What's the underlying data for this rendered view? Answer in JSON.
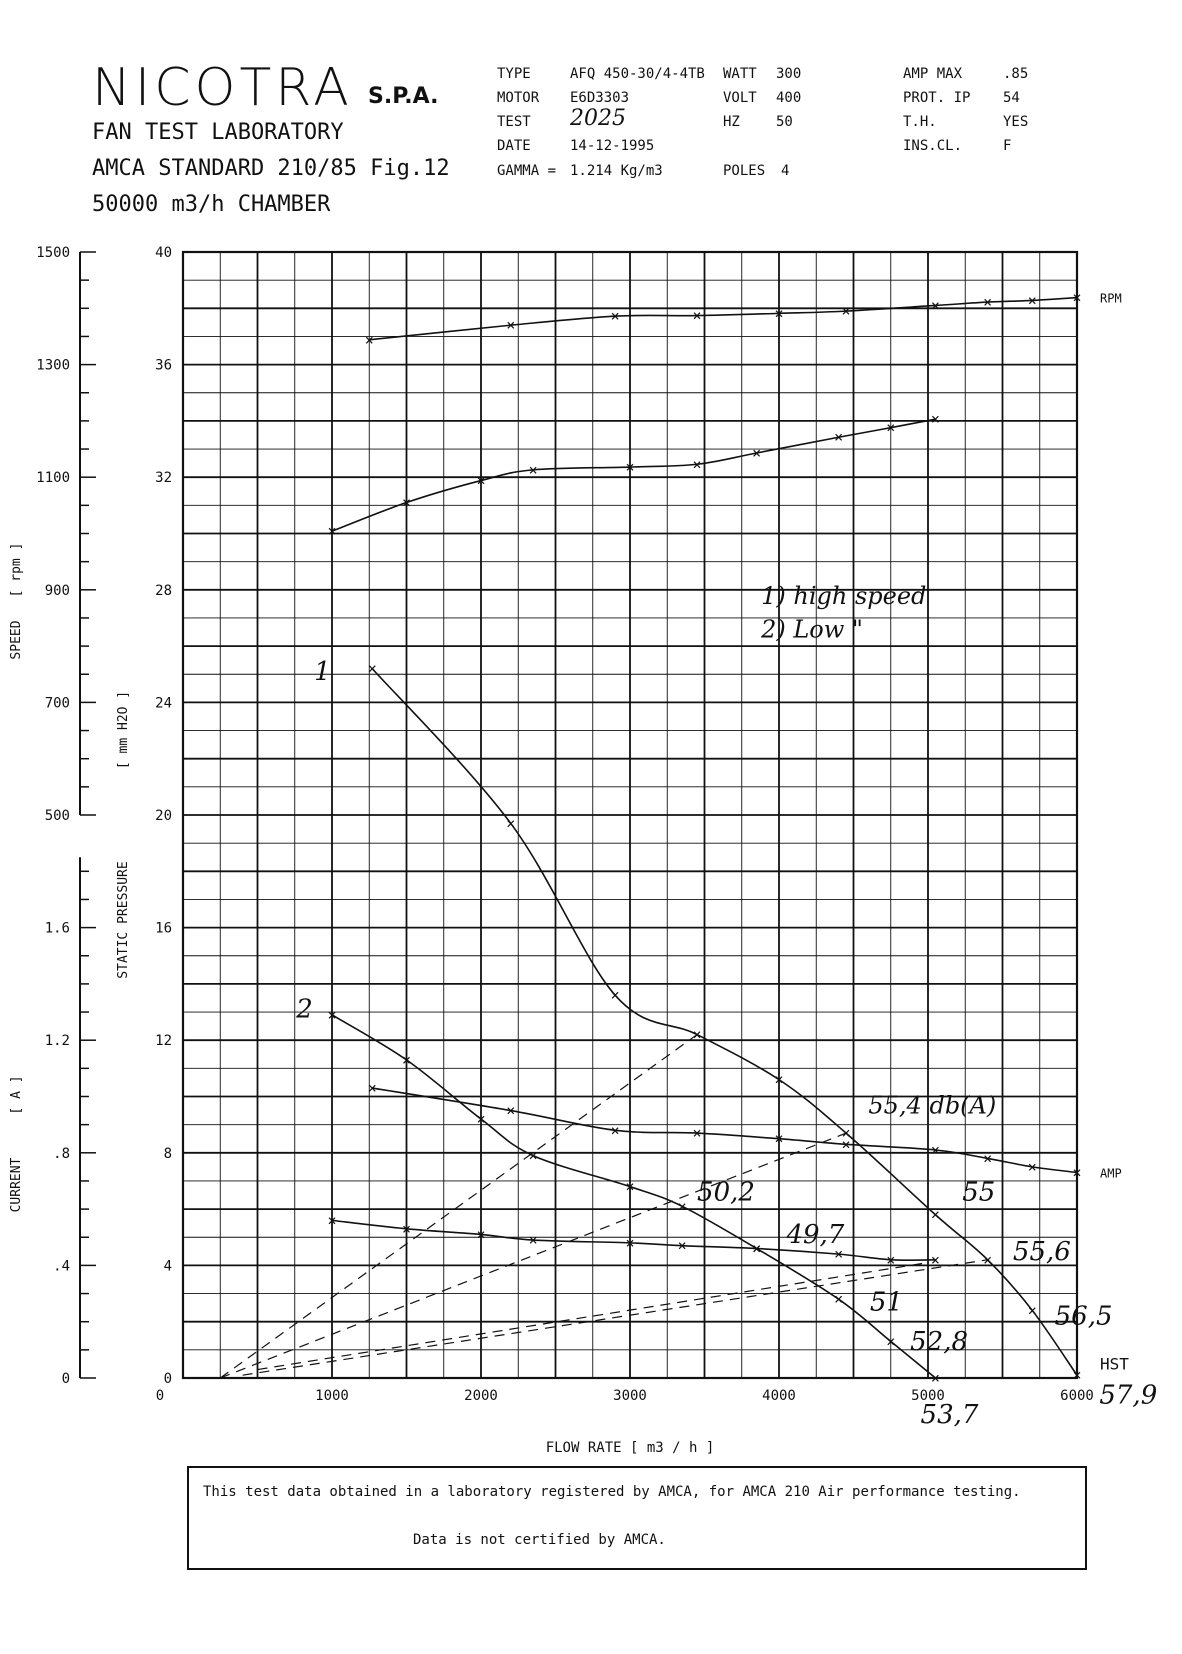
{
  "header": {
    "brand": "NICOTRA",
    "suffix": "S.P.A.",
    "lines": [
      "FAN TEST LABORATORY",
      "AMCA STANDARD 210/85  Fig.12",
      "50000 m3/h  CHAMBER"
    ]
  },
  "specs": {
    "col1": [
      {
        "label": "TYPE",
        "value": "AFQ 450-30/4-4TB"
      },
      {
        "label": "MOTOR",
        "value": "E6D3303"
      },
      {
        "label": "TEST",
        "value": "2025"
      },
      {
        "label": "DATE",
        "value": "14-12-1995"
      },
      {
        "label": "GAMMA =",
        "value": "1.214 Kg/m3"
      }
    ],
    "col2": [
      {
        "label": "WATT",
        "value": "300"
      },
      {
        "label": "VOLT",
        "value": "400"
      },
      {
        "label": "HZ",
        "value": "50"
      },
      {
        "label": "POLES",
        "value": "4"
      }
    ],
    "col3": [
      {
        "label": "AMP MAX",
        "value": ".85"
      },
      {
        "label": "PROT.  IP",
        "value": "54"
      },
      {
        "label": "T.H.",
        "value": "YES"
      },
      {
        "label": "INS.CL.",
        "value": "F"
      }
    ]
  },
  "chart_data": {
    "type": "line",
    "xlabel": "FLOW RATE [ m3 / h ]",
    "xlim": [
      0,
      6000
    ],
    "x_ticks": [
      0,
      1000,
      2000,
      3000,
      4000,
      5000,
      6000
    ],
    "grid": true,
    "axes": {
      "pressure": {
        "label": "STATIC PRESSURE",
        "unit": "[ mm H2O ]",
        "lim": [
          0,
          40
        ],
        "ticks": [
          "0",
          "4",
          "8",
          "12",
          "16",
          "20",
          "24",
          "28",
          "32",
          "36",
          "40"
        ]
      },
      "speed": {
        "label": "SPEED",
        "unit": "[ rpm ]",
        "lim": [
          500,
          1500
        ],
        "ticks": [
          "500",
          "700",
          "900",
          "1100",
          "1300",
          "1500"
        ]
      },
      "current": {
        "label": "CURRENT",
        "unit": "[ A ]",
        "lim": [
          0,
          2.0
        ],
        "ticks": [
          "0",
          ".4",
          ".8",
          "1.2",
          "1.6"
        ]
      }
    },
    "series": [
      {
        "name": "RPM",
        "axis": "speed",
        "smooth": true,
        "x": [
          1250,
          2200,
          2900,
          3450,
          4000,
          4450,
          5050,
          5400,
          5700,
          6000
        ],
        "y": [
          1344,
          1370,
          1386,
          1387,
          1391,
          1395,
          1405,
          1411,
          1414,
          1419
        ]
      },
      {
        "name": "",
        "axis": "speed",
        "smooth": true,
        "x": [
          1000,
          1500,
          2000,
          2350,
          3000,
          3450,
          3850,
          4400,
          4750,
          5050
        ],
        "y": [
          1004,
          1055,
          1094,
          1113,
          1118,
          1123,
          1143,
          1171,
          1188,
          1203
        ]
      },
      {
        "name": "1",
        "axis": "pressure",
        "smooth": true,
        "x": [
          1270,
          2200,
          2900,
          3450,
          4000,
          4450,
          5050,
          5400,
          5700,
          6000
        ],
        "y": [
          25.2,
          19.7,
          13.6,
          12.2,
          10.6,
          8.7,
          5.8,
          4.2,
          2.4,
          0.1
        ]
      },
      {
        "name": "2",
        "axis": "pressure",
        "smooth": true,
        "x": [
          1000,
          1500,
          2000,
          2350,
          3000,
          3350,
          3850,
          4400,
          4750,
          5050
        ],
        "y": [
          12.9,
          11.3,
          9.2,
          7.9,
          6.8,
          6.1,
          4.6,
          2.8,
          1.3,
          0.0
        ]
      },
      {
        "name": "AMP",
        "axis": "pressure",
        "smooth": true,
        "x": [
          1270,
          2200,
          2900,
          3450,
          4000,
          4450,
          5050,
          5400,
          5700,
          6000
        ],
        "y": [
          10.3,
          9.5,
          8.8,
          8.7,
          8.5,
          8.3,
          8.1,
          7.8,
          7.5,
          7.3
        ]
      },
      {
        "name": "",
        "axis": "pressure",
        "smooth": true,
        "x": [
          1000,
          1500,
          2000,
          2350,
          3000,
          3350,
          3850,
          4400,
          4750,
          5050
        ],
        "y": [
          5.6,
          5.3,
          5.1,
          4.9,
          4.8,
          4.7,
          4.6,
          4.4,
          4.2,
          4.2
        ]
      },
      {
        "name": "",
        "axis": "pressure",
        "style": "dashed",
        "marker": false,
        "x": [
          250,
          3450
        ],
        "y": [
          0.0,
          12.2
        ]
      },
      {
        "name": "",
        "axis": "pressure",
        "style": "dashed",
        "marker": false,
        "x": [
          250,
          4450
        ],
        "y": [
          0.0,
          8.7
        ]
      },
      {
        "name": "",
        "axis": "pressure",
        "style": "dashed",
        "marker": false,
        "x": [
          400,
          5400
        ],
        "y": [
          0.1,
          4.2
        ]
      },
      {
        "name": "",
        "axis": "pressure",
        "style": "dashed",
        "marker": false,
        "x": [
          500,
          5000
        ],
        "y": [
          0.3,
          4.1
        ]
      }
    ],
    "axis_labels_right": [
      "RPM",
      "AMP",
      "HST"
    ],
    "annotations": [
      {
        "text": "1) high speed",
        "x": 3880,
        "y": 27.5
      },
      {
        "text": "2) Low  \"",
        "x": 3880,
        "y": 26.3
      },
      {
        "text": "1",
        "x": 880,
        "y": 24.8
      },
      {
        "text": "2",
        "x": 760,
        "y": 12.8
      },
      {
        "text": "55,4 db(A)",
        "x": 4600,
        "y": 9.4
      },
      {
        "text": "55",
        "x": 5230,
        "y": 6.3
      },
      {
        "text": "55,6",
        "x": 5570,
        "y": 4.2
      },
      {
        "text": "56,5",
        "x": 5850,
        "y": 1.9
      },
      {
        "text": "57,9",
        "x": 6150,
        "y": -0.9
      },
      {
        "text": "50,2",
        "x": 3450,
        "y": 6.3
      },
      {
        "text": "49,7",
        "x": 4050,
        "y": 4.8
      },
      {
        "text": "51",
        "x": 4610,
        "y": 2.4
      },
      {
        "text": "52,8",
        "x": 4880,
        "y": 1.0
      },
      {
        "text": "53,7",
        "x": 4950,
        "y": -1.6
      }
    ]
  },
  "footer": {
    "line1": "This test data obtained in a laboratory registered by AMCA, for  AMCA 210 Air performance testing.",
    "line2": "Data is not certified by AMCA."
  },
  "colors": {
    "ink": "#111111",
    "paper": "#ffffff",
    "watermark": "#d6d6d6"
  }
}
